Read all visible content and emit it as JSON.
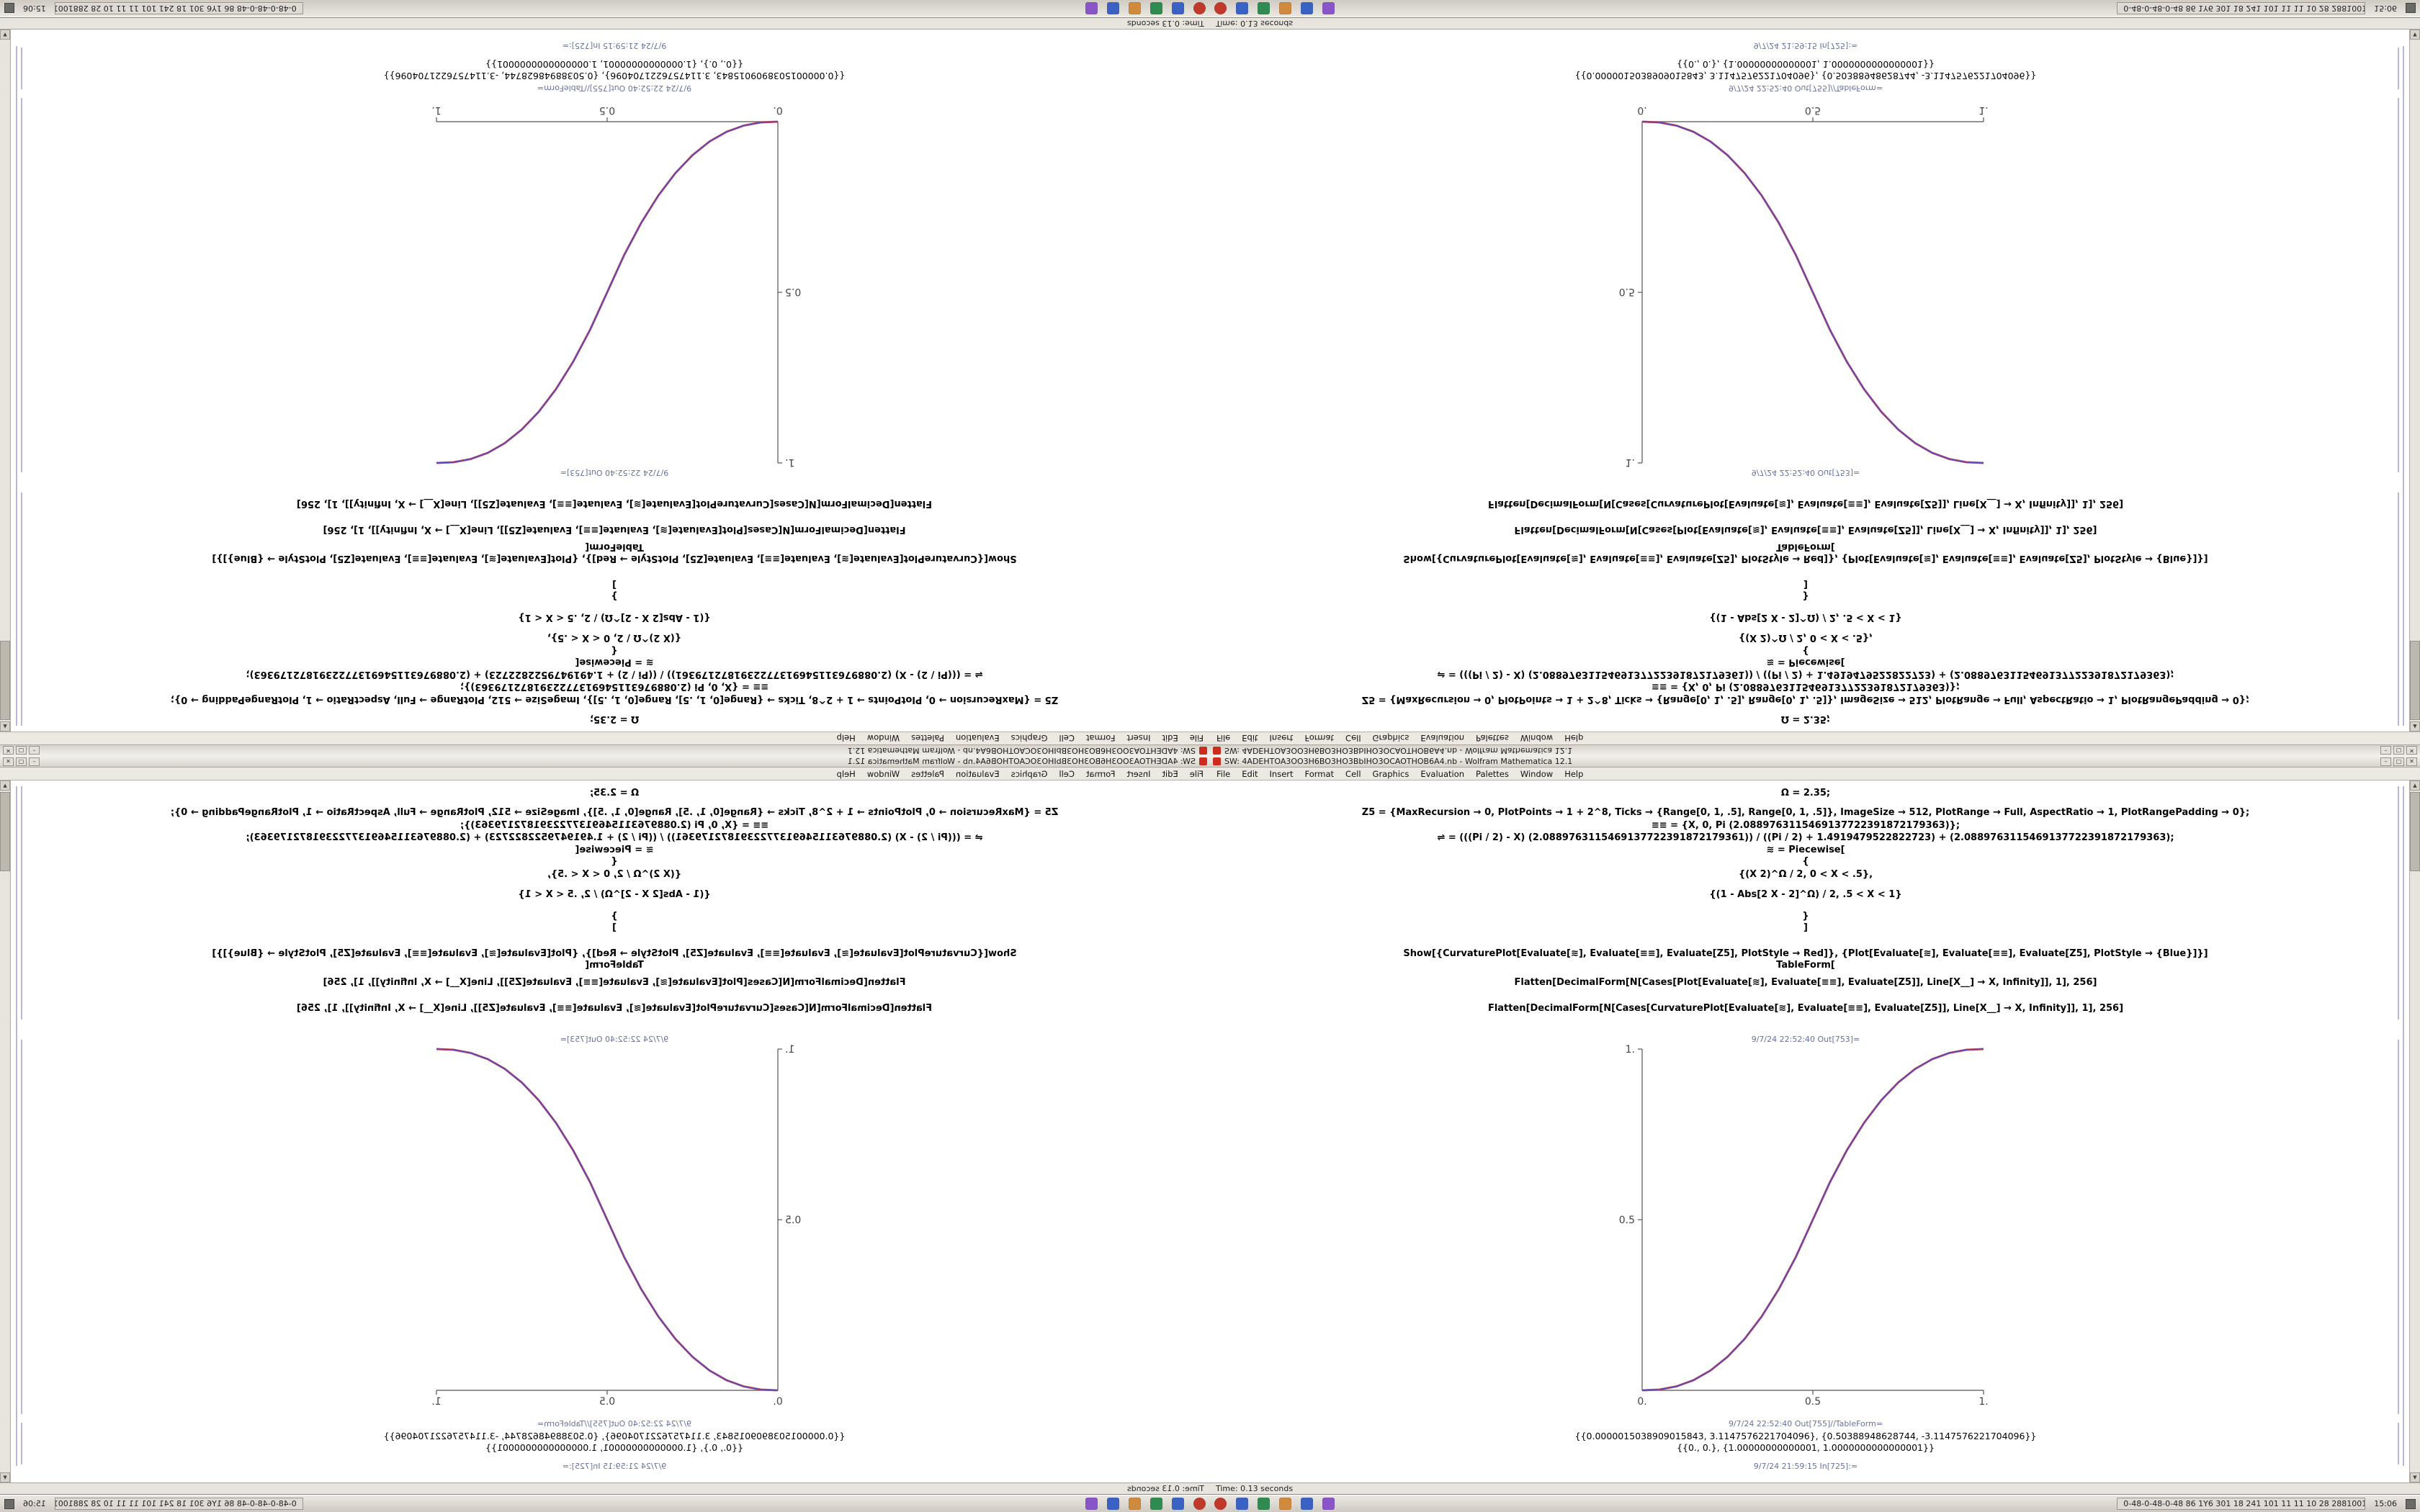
{
  "window": {
    "title": "SW: 4ADEHTOA3OO3H6BO3HO3BbIHO3OCAOTHOB6A4.nb - Wolfram Mathematica 12.1",
    "controls": {
      "minimize": "–",
      "maximize": "▢",
      "close": "✕"
    },
    "status_left": "Time: 0.13 seconds"
  },
  "menubar": {
    "items": [
      "File",
      "Edit",
      "Insert",
      "Format",
      "Cell",
      "Graphics",
      "Evaluation",
      "Palettes",
      "Window",
      "Help"
    ]
  },
  "notebook": {
    "lines": [
      "Ω = 2.35;",
      "Z5 = {MaxRecursion → 0, PlotPoints → 1 + 2^8, Ticks → {Range[0, 1, .5], Range[0, 1, .5]}, ImageSize → 512, PlotRange → Full, AspectRatio → 1, PlotRangePadding → 0};",
      "≡≡ = {X, 0, Pi (2.0889763115469137722391872179363)};",
      "⇌ = (((Pi / 2) - X) (2.0889763115469137722391872179361)) / ((Pi / 2) + 1.4919479522822723) + (2.0889763115469137722391872179363);",
      "≋ = Piecewise[",
      "{",
      "{(X 2)^Ω / 2, 0 < X < .5},",
      "{(1 - Abs[2 X - 2]^Ω) / 2, .5 < X < 1}",
      "}",
      "]",
      "Show[{CurvaturePlot[Evaluate[≋], Evaluate[≡≡], Evaluate[Z5], PlotStyle → Red]}, {Plot[Evaluate[≋], Evaluate[≡≡], Evaluate[Z5], PlotStyle → {Blue}]}]",
      "TableForm[",
      "Flatten[DecimalForm[N[Cases[Plot[Evaluate[≋], Evaluate[≡≡], Evaluate[Z5]], Line[X__] → X, Infinity]], 1], 256]",
      "Flatten[DecimalForm[N[Cases[CurvaturePlot[Evaluate[≋], Evaluate[≡≡], Evaluate[Z5]], Line[X__] → X, Infinity]], 1], 256]"
    ],
    "labels": {
      "out_plot": "9/7/24 22:52:40 Out[753]=",
      "out_table": "9/7/24 22:52:40 Out[755]//TableForm=",
      "in_next": "9/7/24 21:59:15 In[725]:="
    },
    "outputs": [
      "{{0.0000015038909015843, 3.1147576221704096}, {0.50388948628744, -3.1147576221704096}}",
      "{{0., 0.}, {1.00000000000001, 1.0000000000000001}}"
    ]
  },
  "taskbar": {
    "tray": [
      {
        "name": "app-red",
        "color": "#c0392b",
        "shape": "circle"
      },
      {
        "name": "app-blue",
        "color": "#3a62c4",
        "shape": "square"
      },
      {
        "name": "app-green",
        "color": "#2f8b4f",
        "shape": "square"
      },
      {
        "name": "app-orange",
        "color": "#d08a3e",
        "shape": "square"
      },
      {
        "name": "app-blue-2",
        "color": "#3a62c4",
        "shape": "square"
      },
      {
        "name": "app-purple",
        "color": "#8a55c8",
        "shape": "square"
      }
    ],
    "window_button": "0-48-0-48-0-48 86 1Y6 301 18 241 101 11 11 10 28 2881001",
    "clock": "15:06"
  },
  "chart_data": {
    "type": "line",
    "title": "",
    "xlabel": "",
    "ylabel": "",
    "xlim": [
      0,
      1
    ],
    "ylim": [
      0,
      1
    ],
    "grid": false,
    "legend": "none",
    "xticks": [
      "0.",
      "0.5",
      "1."
    ],
    "yticks": [
      "0.5",
      "1."
    ],
    "x": [
      0,
      0.05,
      0.1,
      0.15,
      0.2,
      0.25,
      0.3,
      0.35,
      0.4,
      0.45,
      0.5,
      0.55,
      0.6,
      0.65,
      0.7,
      0.75,
      0.8,
      0.85,
      0.9,
      0.95,
      1
    ],
    "series": [
      {
        "name": "CurvaturePlot (Red)",
        "color": "#d8403a",
        "values": [
          0,
          0.0022,
          0.0114,
          0.0295,
          0.058,
          0.098,
          0.1505,
          0.2163,
          0.296,
          0.3903,
          0.5,
          0.6097,
          0.704,
          0.7837,
          0.8495,
          0.902,
          0.942,
          0.9705,
          0.9886,
          0.9978,
          1
        ]
      },
      {
        "name": "Plot (Blue)",
        "color": "#4444cc",
        "values": [
          0,
          0.0022,
          0.0114,
          0.0295,
          0.058,
          0.098,
          0.1505,
          0.2163,
          0.296,
          0.3903,
          0.5,
          0.6097,
          0.704,
          0.7837,
          0.8495,
          0.902,
          0.942,
          0.9705,
          0.9886,
          0.9978,
          1
        ]
      }
    ]
  }
}
